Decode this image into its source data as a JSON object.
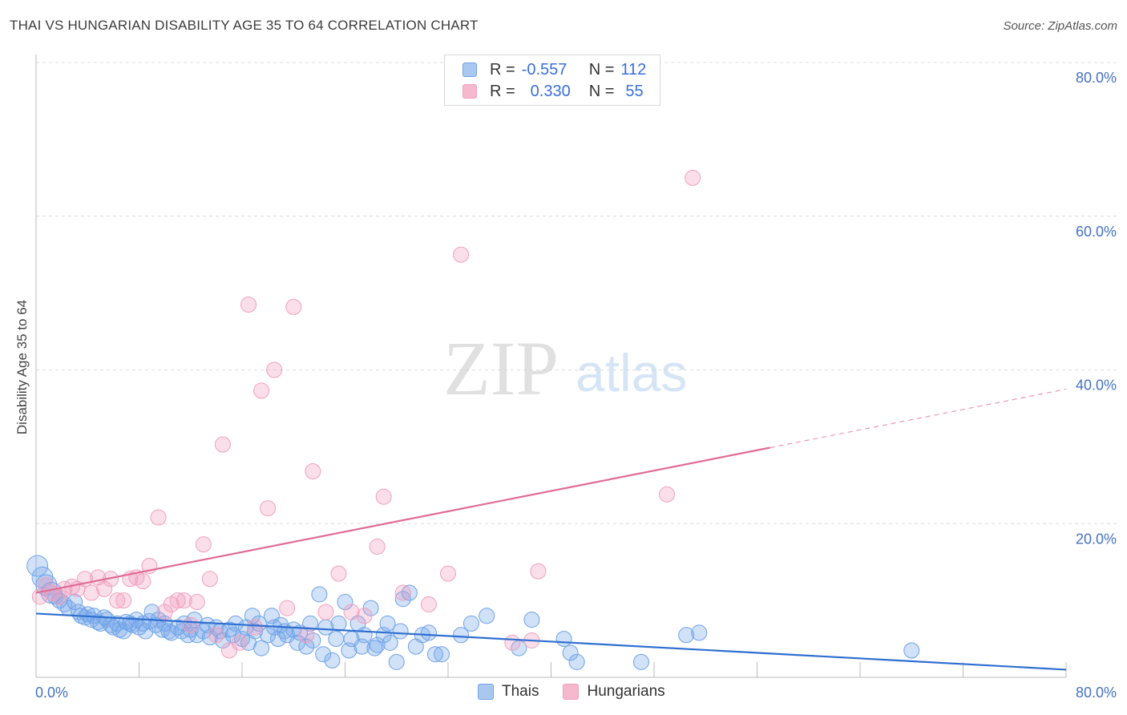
{
  "title": "THAI VS HUNGARIAN DISABILITY AGE 35 TO 64 CORRELATION CHART",
  "source": "Source: ZipAtlas.com",
  "watermark": {
    "zip": "ZIP",
    "atlas": "atlas"
  },
  "legend": {
    "rows": [
      {
        "r_label": "R =",
        "r_value": "-0.557",
        "n_label": "N =",
        "n_value": "112",
        "color": "#a8c8f0"
      },
      {
        "r_label": "R =",
        "r_value": "0.330",
        "n_label": "N =",
        "n_value": "55",
        "color": "#f5b8cc"
      }
    ]
  },
  "bottom_legend": [
    {
      "label": "Thais",
      "color": "#a8c8f0"
    },
    {
      "label": "Hungarians",
      "color": "#f5b8cc"
    }
  ],
  "chart_data": {
    "type": "scatter",
    "title": "THAI VS HUNGARIAN DISABILITY AGE 35 TO 64 CORRELATION CHART",
    "xlabel": "",
    "ylabel": "Disability Age 35 to 64",
    "xlim": [
      0,
      80
    ],
    "ylim": [
      0,
      80
    ],
    "x_ticks": [
      "0.0%",
      "80.0%"
    ],
    "y_ticks": [
      "20.0%",
      "40.0%",
      "60.0%",
      "80.0%"
    ],
    "y_tick_values": [
      20,
      40,
      60,
      80
    ],
    "grid": true,
    "legend_position": "top-center",
    "series": [
      {
        "name": "Thais",
        "color": "#6fa2e6",
        "trend": {
          "x0": 0,
          "y0": 8.3,
          "x1": 80,
          "y1": 1.0,
          "solid_to": 80
        },
        "points": [
          [
            0.1,
            14.5
          ],
          [
            0.5,
            13.0
          ],
          [
            0.8,
            12.0
          ],
          [
            1.2,
            11.0
          ],
          [
            1.5,
            10.5
          ],
          [
            1.8,
            10.0
          ],
          [
            2.2,
            9.5
          ],
          [
            2.5,
            9.0
          ],
          [
            3.0,
            9.8
          ],
          [
            3.3,
            8.5
          ],
          [
            3.5,
            8.0
          ],
          [
            3.8,
            7.8
          ],
          [
            4.0,
            8.2
          ],
          [
            4.3,
            7.5
          ],
          [
            4.5,
            8.0
          ],
          [
            4.8,
            7.2
          ],
          [
            5.0,
            7.0
          ],
          [
            5.3,
            7.8
          ],
          [
            5.5,
            7.5
          ],
          [
            5.8,
            6.8
          ],
          [
            6.0,
            6.5
          ],
          [
            6.3,
            7.0
          ],
          [
            6.5,
            6.2
          ],
          [
            6.8,
            6.0
          ],
          [
            7.0,
            7.2
          ],
          [
            7.3,
            7.0
          ],
          [
            7.5,
            6.8
          ],
          [
            7.8,
            7.5
          ],
          [
            8.0,
            6.5
          ],
          [
            8.3,
            7.0
          ],
          [
            8.5,
            6.0
          ],
          [
            8.8,
            7.3
          ],
          [
            9.0,
            8.5
          ],
          [
            9.3,
            6.8
          ],
          [
            9.5,
            7.5
          ],
          [
            9.8,
            6.2
          ],
          [
            10.0,
            7.0
          ],
          [
            10.3,
            6.0
          ],
          [
            10.5,
            5.8
          ],
          [
            11.0,
            6.5
          ],
          [
            11.3,
            6.0
          ],
          [
            11.5,
            7.0
          ],
          [
            11.8,
            5.5
          ],
          [
            12.0,
            6.2
          ],
          [
            12.3,
            7.5
          ],
          [
            12.5,
            5.5
          ],
          [
            13.0,
            6.0
          ],
          [
            13.3,
            6.8
          ],
          [
            13.5,
            5.2
          ],
          [
            14.0,
            6.5
          ],
          [
            14.3,
            6.0
          ],
          [
            14.5,
            4.8
          ],
          [
            15.0,
            6.2
          ],
          [
            15.3,
            5.5
          ],
          [
            15.5,
            7.0
          ],
          [
            16.0,
            5.0
          ],
          [
            16.3,
            6.5
          ],
          [
            16.5,
            4.5
          ],
          [
            16.8,
            8.0
          ],
          [
            17.0,
            6.0
          ],
          [
            17.3,
            7.0
          ],
          [
            17.5,
            3.8
          ],
          [
            18.0,
            5.5
          ],
          [
            18.3,
            8.0
          ],
          [
            18.5,
            6.5
          ],
          [
            18.8,
            5.0
          ],
          [
            19.0,
            6.8
          ],
          [
            19.3,
            6.0
          ],
          [
            19.5,
            5.5
          ],
          [
            20.0,
            6.2
          ],
          [
            20.3,
            4.5
          ],
          [
            20.5,
            5.8
          ],
          [
            21.0,
            4.0
          ],
          [
            21.3,
            7.0
          ],
          [
            21.5,
            4.8
          ],
          [
            22.0,
            10.8
          ],
          [
            22.3,
            3.0
          ],
          [
            22.5,
            6.5
          ],
          [
            23.0,
            2.2
          ],
          [
            23.3,
            5.0
          ],
          [
            23.5,
            7.0
          ],
          [
            24.0,
            9.8
          ],
          [
            24.3,
            3.5
          ],
          [
            24.5,
            5.0
          ],
          [
            25.0,
            7.0
          ],
          [
            25.3,
            4.0
          ],
          [
            25.5,
            5.5
          ],
          [
            26.0,
            9.0
          ],
          [
            26.3,
            3.8
          ],
          [
            26.5,
            4.2
          ],
          [
            27.0,
            5.5
          ],
          [
            27.3,
            7.0
          ],
          [
            27.5,
            4.5
          ],
          [
            28.0,
            2.0
          ],
          [
            28.3,
            6.0
          ],
          [
            28.5,
            10.2
          ],
          [
            29.0,
            11.0
          ],
          [
            29.5,
            4.0
          ],
          [
            30.0,
            5.5
          ],
          [
            30.5,
            5.8
          ],
          [
            31.0,
            3.0
          ],
          [
            31.5,
            3.0
          ],
          [
            33.0,
            5.5
          ],
          [
            33.8,
            7.0
          ],
          [
            35.0,
            8.0
          ],
          [
            37.5,
            3.8
          ],
          [
            38.5,
            7.5
          ],
          [
            41.0,
            5.0
          ],
          [
            41.5,
            3.2
          ],
          [
            42.0,
            2.0
          ],
          [
            47.0,
            2.0
          ],
          [
            50.5,
            5.5
          ],
          [
            51.5,
            5.8
          ],
          [
            68.0,
            3.5
          ]
        ]
      },
      {
        "name": "Hungarians",
        "color": "#f0a0bc",
        "trend": {
          "x0": 0,
          "y0": 11.0,
          "x1": 80,
          "y1": 37.5,
          "solid_to": 57
        },
        "points": [
          [
            0.3,
            10.5
          ],
          [
            0.8,
            12.0
          ],
          [
            1.2,
            11.0
          ],
          [
            1.8,
            10.5
          ],
          [
            2.2,
            11.5
          ],
          [
            2.8,
            11.8
          ],
          [
            3.2,
            11.5
          ],
          [
            3.8,
            12.8
          ],
          [
            4.3,
            11.0
          ],
          [
            4.8,
            13.0
          ],
          [
            5.3,
            11.5
          ],
          [
            5.8,
            12.8
          ],
          [
            6.3,
            10.0
          ],
          [
            6.8,
            10.0
          ],
          [
            7.3,
            12.8
          ],
          [
            7.8,
            13.0
          ],
          [
            8.3,
            12.5
          ],
          [
            8.8,
            14.5
          ],
          [
            9.5,
            20.8
          ],
          [
            10.0,
            8.5
          ],
          [
            10.5,
            9.5
          ],
          [
            11.0,
            10.0
          ],
          [
            11.5,
            10.0
          ],
          [
            12.0,
            6.8
          ],
          [
            12.5,
            9.8
          ],
          [
            13.0,
            17.3
          ],
          [
            13.5,
            12.8
          ],
          [
            14.0,
            5.5
          ],
          [
            14.5,
            30.3
          ],
          [
            15.0,
            3.5
          ],
          [
            15.8,
            4.5
          ],
          [
            16.5,
            48.5
          ],
          [
            17.0,
            6.5
          ],
          [
            17.5,
            37.3
          ],
          [
            18.0,
            22.0
          ],
          [
            18.5,
            40.0
          ],
          [
            19.5,
            9.0
          ],
          [
            20.0,
            48.2
          ],
          [
            21.0,
            5.5
          ],
          [
            21.5,
            26.8
          ],
          [
            22.5,
            8.5
          ],
          [
            23.5,
            13.5
          ],
          [
            24.5,
            8.5
          ],
          [
            25.5,
            8.0
          ],
          [
            26.5,
            17.0
          ],
          [
            27.0,
            23.5
          ],
          [
            28.5,
            11.0
          ],
          [
            30.5,
            9.5
          ],
          [
            32.0,
            13.5
          ],
          [
            33.0,
            55.0
          ],
          [
            37.0,
            4.5
          ],
          [
            38.5,
            4.8
          ],
          [
            39.0,
            13.8
          ],
          [
            49.0,
            23.8
          ],
          [
            51.0,
            65.0
          ]
        ]
      }
    ]
  }
}
